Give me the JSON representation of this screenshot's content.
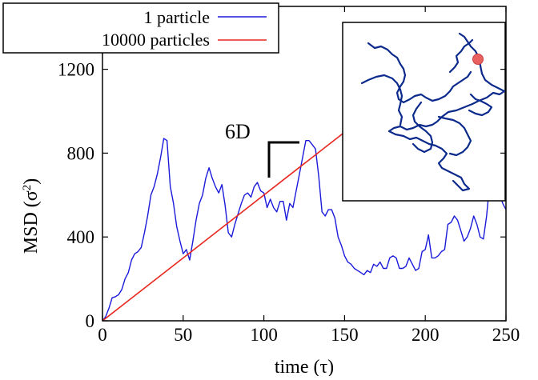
{
  "chart_data": {
    "type": "line",
    "xlabel": "time (τ)",
    "ylabel": "MSD (σ²)",
    "ylabel_main": "MSD (σ",
    "ylabel_sup": "2",
    "ylabel_close": ")",
    "xlim": [
      0,
      250
    ],
    "ylim": [
      0,
      1500
    ],
    "xticks": [
      0,
      50,
      100,
      150,
      200,
      250
    ],
    "yticks": [
      0,
      400,
      800,
      1200
    ],
    "grid": false,
    "legend_position": "top-left",
    "annotation": "6D",
    "series": [
      {
        "name": "1 particle",
        "color": "#1a1adb",
        "x": [
          0,
          2,
          4,
          6,
          8,
          10,
          12,
          14,
          16,
          18,
          20,
          22,
          24,
          26,
          28,
          30,
          32,
          34,
          36,
          38,
          40,
          42,
          44,
          46,
          48,
          50,
          52,
          54,
          56,
          58,
          60,
          62,
          64,
          66,
          68,
          70,
          72,
          74,
          76,
          78,
          80,
          82,
          84,
          86,
          88,
          90,
          92,
          94,
          96,
          98,
          100,
          102,
          104,
          106,
          108,
          110,
          112,
          114,
          116,
          118,
          120,
          122,
          124,
          126,
          128,
          130,
          132,
          134,
          136,
          138,
          140,
          142,
          144,
          146,
          148,
          150,
          152,
          154,
          156,
          158,
          160,
          162,
          164,
          166,
          168,
          170,
          172,
          174,
          176,
          178,
          180,
          182,
          184,
          186,
          188,
          190,
          192,
          194,
          196,
          198,
          200,
          202,
          204,
          206,
          208,
          210,
          212,
          214,
          216,
          218,
          220,
          222,
          224,
          226,
          228,
          230,
          232,
          234,
          236,
          238,
          240,
          242,
          244,
          246,
          248,
          250
        ],
        "values": [
          0,
          20,
          60,
          110,
          115,
          125,
          150,
          200,
          230,
          290,
          320,
          330,
          350,
          420,
          500,
          600,
          640,
          700,
          780,
          870,
          860,
          640,
          560,
          450,
          380,
          320,
          340,
          290,
          380,
          480,
          560,
          600,
          680,
          730,
          680,
          640,
          610,
          650,
          550,
          420,
          400,
          460,
          510,
          560,
          600,
          610,
          590,
          640,
          660,
          620,
          610,
          540,
          580,
          540,
          520,
          570,
          570,
          480,
          560,
          540,
          620,
          700,
          780,
          860,
          860,
          840,
          820,
          690,
          520,
          500,
          530,
          530,
          490,
          400,
          360,
          310,
          280,
          270,
          250,
          240,
          230,
          220,
          240,
          230,
          270,
          260,
          280,
          250,
          250,
          300,
          310,
          300,
          250,
          250,
          260,
          300,
          270,
          240,
          250,
          330,
          340,
          410,
          300,
          300,
          310,
          330,
          340,
          460,
          470,
          500,
          480,
          430,
          380,
          400,
          440,
          500,
          460,
          400,
          390,
          500,
          660,
          820,
          620,
          600,
          560,
          530
        ]
      },
      {
        "name": "10000 particles",
        "color": "#e8261e",
        "x": [
          0,
          150
        ],
        "values": [
          0,
          900
        ]
      }
    ]
  },
  "inset": {
    "description": "particle trajectory",
    "line_color": "#0b2a8c",
    "marker_color": "#e86060"
  }
}
